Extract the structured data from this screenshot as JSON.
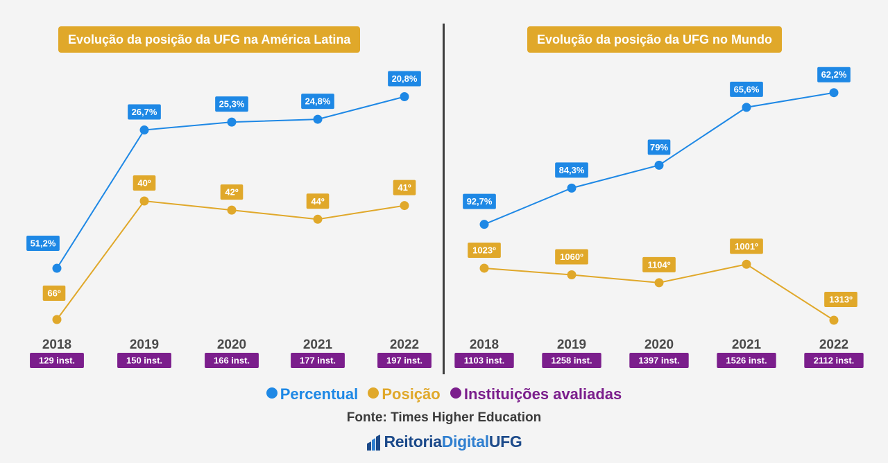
{
  "colors": {
    "percentual": "#1e88e5",
    "posicao": "#e0a82a",
    "instituicoes": "#7b1e8c",
    "year_text": "#4a4a4a",
    "brand": "#1c4a8a"
  },
  "panels": [
    {
      "title": "Evolução da posição da UFG na América Latina"
    },
    {
      "title": "Evolução da posição da UFG no Mundo"
    }
  ],
  "chart_data": [
    {
      "type": "line",
      "title": "Evolução da posição da UFG na América Latina",
      "categories": [
        "2018",
        "2019",
        "2020",
        "2021",
        "2022"
      ],
      "institutions": [
        "129 inst.",
        "150 inst.",
        "166 inst.",
        "177 inst.",
        "197 inst."
      ],
      "series": [
        {
          "name": "Percentual",
          "values": [
            51.2,
            26.7,
            25.3,
            24.8,
            20.8
          ],
          "labels": [
            "51,2%",
            "26,7%",
            "25,3%",
            "24,8%",
            "20,8%"
          ]
        },
        {
          "name": "Posição",
          "values": [
            66,
            40,
            42,
            44,
            41
          ],
          "labels": [
            "66º",
            "40º",
            "42º",
            "44º",
            "41º"
          ]
        }
      ]
    },
    {
      "type": "line",
      "title": "Evolução da posição da UFG no Mundo",
      "categories": [
        "2018",
        "2019",
        "2020",
        "2021",
        "2022"
      ],
      "institutions": [
        "1103 inst.",
        "1258 inst.",
        "1397 inst.",
        "1526 inst.",
        "2112 inst."
      ],
      "series": [
        {
          "name": "Percentual",
          "values": [
            92.7,
            84.3,
            79,
            65.6,
            62.2
          ],
          "labels": [
            "92,7%",
            "84,3%",
            "79%",
            "65,6%",
            "62,2%"
          ]
        },
        {
          "name": "Posição",
          "values": [
            1023,
            1060,
            1104,
            1001,
            1313
          ],
          "labels": [
            "1023º",
            "1060º",
            "1104º",
            "1001º",
            "1313º"
          ]
        }
      ]
    }
  ],
  "legend": {
    "percentual": "Percentual",
    "posicao": "Posição",
    "instituicoes": "Instituições avaliadas"
  },
  "source": "Fonte: Times Higher Education",
  "brand": {
    "part1": "Reitoria",
    "part2": "Digital",
    "part3": "UFG"
  }
}
